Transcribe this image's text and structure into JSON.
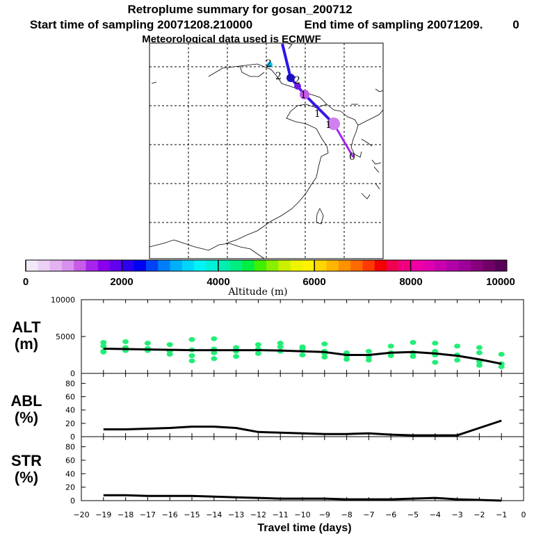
{
  "title": {
    "line1": "Retroplume summary for gosan_200712",
    "start": "Start time of sampling 20071208.210000",
    "end": "End time of sampling 20071209.",
    "end_hour": "0",
    "line3": "Meteorological data used is ECMWF"
  },
  "map": {
    "description_labels": [
      "2",
      "2",
      "2",
      "1",
      "1",
      "1",
      "0"
    ]
  },
  "colorbar": {
    "colors": [
      "#f3e8f8",
      "#ecd2f5",
      "#e3b2f0",
      "#d890ee",
      "#c65ce8",
      "#a525ea",
      "#8a00ee",
      "#6000ee",
      "#2d00f0",
      "#0000f2",
      "#0043f6",
      "#007ef8",
      "#00b0fa",
      "#00d6fc",
      "#00f3f5",
      "#00f0d8",
      "#00efb0",
      "#00ee80",
      "#00ef40",
      "#40f000",
      "#88f000",
      "#c8f000",
      "#eef400",
      "#fff300",
      "#ffd600",
      "#ffb600",
      "#ff9200",
      "#ff6a00",
      "#ff3a00",
      "#f40000",
      "#f00050",
      "#f00080",
      "#f000a4",
      "#e000b0",
      "#c800b0",
      "#b000a8",
      "#9c0098",
      "#86007e",
      "#700068",
      "#580058"
    ],
    "tick_labels": [
      "0",
      "2000",
      "4000",
      "6000",
      "8000",
      "10000"
    ],
    "xlabel": "Altitude (m)"
  },
  "panel_labels": {
    "alt": "ALT",
    "alt_unit": "(m)",
    "abl": "ABL",
    "abl_unit": "(%)",
    "str": "STR",
    "str_unit": "(%)"
  },
  "chart_data": [
    {
      "type": "line",
      "name": "ALT",
      "ylabel": "ALT (m)",
      "ylim": [
        0,
        10000
      ],
      "yticks": [
        "0",
        "5000",
        "10000"
      ],
      "x": [
        -19,
        -18,
        -17,
        -16,
        -15,
        -14,
        -13,
        -12,
        -11,
        -10,
        -9,
        -8,
        -7,
        -6,
        -5,
        -4,
        -3,
        -2,
        -1
      ],
      "values": [
        3350,
        3300,
        3250,
        3200,
        3150,
        3150,
        3150,
        3150,
        3100,
        3000,
        2900,
        2500,
        2500,
        2800,
        2900,
        2700,
        2400,
        1900,
        1300
      ],
      "scatter_color": "#22ee77",
      "scatter": [
        [
          -19,
          3700
        ],
        [
          -19,
          3000
        ],
        [
          -19,
          4200
        ],
        [
          -19,
          2900
        ],
        [
          -18,
          3500
        ],
        [
          -18,
          3100
        ],
        [
          -18,
          4300
        ],
        [
          -17,
          3400
        ],
        [
          -17,
          3100
        ],
        [
          -17,
          4100
        ],
        [
          -16,
          3000
        ],
        [
          -16,
          2600
        ],
        [
          -16,
          3900
        ],
        [
          -15,
          3200
        ],
        [
          -15,
          2400
        ],
        [
          -15,
          1700
        ],
        [
          -15,
          4600
        ],
        [
          -14,
          3300
        ],
        [
          -14,
          2800
        ],
        [
          -14,
          2000
        ],
        [
          -14,
          4700
        ],
        [
          -13,
          3500
        ],
        [
          -13,
          3000
        ],
        [
          -13,
          2300
        ],
        [
          -12,
          3300
        ],
        [
          -12,
          2700
        ],
        [
          -12,
          3900
        ],
        [
          -11,
          3600
        ],
        [
          -11,
          3000
        ],
        [
          -11,
          4100
        ],
        [
          -10,
          3300
        ],
        [
          -10,
          2500
        ],
        [
          -10,
          3600
        ],
        [
          -9,
          3000
        ],
        [
          -9,
          2700
        ],
        [
          -9,
          4000
        ],
        [
          -9,
          2200
        ],
        [
          -8,
          2400
        ],
        [
          -8,
          1900
        ],
        [
          -8,
          2800
        ],
        [
          -7,
          2300
        ],
        [
          -7,
          1800
        ],
        [
          -7,
          3000
        ],
        [
          -6,
          2800
        ],
        [
          -6,
          2400
        ],
        [
          -6,
          3700
        ],
        [
          -5,
          2800
        ],
        [
          -5,
          2300
        ],
        [
          -5,
          4200
        ],
        [
          -4,
          3000
        ],
        [
          -4,
          2500
        ],
        [
          -4,
          1500
        ],
        [
          -4,
          4100
        ],
        [
          -3,
          2500
        ],
        [
          -3,
          1800
        ],
        [
          -3,
          3700
        ],
        [
          -2,
          1600
        ],
        [
          -2,
          1100
        ],
        [
          -2,
          2800
        ],
        [
          -2,
          3500
        ],
        [
          -1,
          900
        ],
        [
          -1,
          1300
        ],
        [
          -1,
          2600
        ]
      ]
    },
    {
      "type": "line",
      "name": "ABL",
      "ylabel": "ABL (%)",
      "ylim": [
        0,
        95
      ],
      "yticks": [
        "0",
        "20",
        "40",
        "60",
        "80"
      ],
      "x": [
        -19,
        -18,
        -17,
        -16,
        -15,
        -14,
        -13,
        -12,
        -11,
        -10,
        -9,
        -8,
        -7,
        -6,
        -5,
        -4,
        -3,
        -2,
        -1
      ],
      "values": [
        11,
        11,
        12,
        13,
        15,
        15,
        13,
        7,
        6,
        5,
        4,
        4,
        5,
        3,
        2,
        2,
        2,
        13,
        24
      ]
    },
    {
      "type": "line",
      "name": "STR",
      "ylabel": "STR (%)",
      "ylim": [
        0,
        95
      ],
      "yticks": [
        "0",
        "20",
        "40",
        "60",
        "80"
      ],
      "x": [
        -19,
        -18,
        -17,
        -16,
        -15,
        -14,
        -13,
        -12,
        -11,
        -10,
        -9,
        -8,
        -7,
        -6,
        -5,
        -4,
        -3,
        -2,
        -1
      ],
      "values": [
        8,
        8,
        7,
        7,
        7,
        6,
        5,
        4,
        3,
        3,
        3,
        2,
        2,
        2,
        3,
        4,
        2,
        1,
        0
      ],
      "xlabel": "Travel time (days)",
      "xticks": [
        "−20",
        "−19",
        "−18",
        "−17",
        "−16",
        "−15",
        "−14",
        "−13",
        "−12",
        "−11",
        "−10",
        "−9",
        "−8",
        "−7",
        "−6",
        "−5",
        "−4",
        "−3",
        "−2",
        "−1",
        "0"
      ]
    }
  ]
}
